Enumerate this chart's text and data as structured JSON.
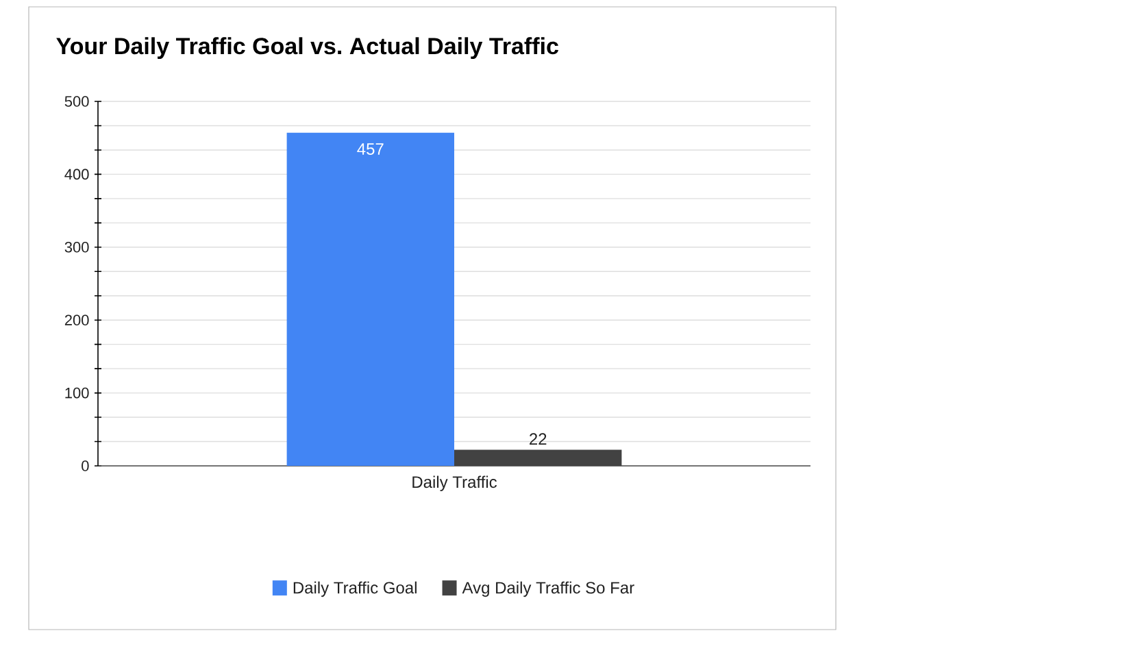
{
  "chart_data": {
    "type": "bar",
    "title": "Your Daily Traffic Goal vs. Actual Daily Traffic",
    "categories": [
      "Daily Traffic"
    ],
    "series": [
      {
        "name": "Daily Traffic Goal",
        "color": "#4285f4",
        "values": [
          457
        ]
      },
      {
        "name": "Avg Daily Traffic So Far",
        "color": "#424242",
        "values": [
          22
        ]
      }
    ],
    "ylim": [
      0,
      500
    ],
    "yticks": [
      0,
      {
        "value": 33.3,
        "label": null
      },
      {
        "value": 66.7,
        "label": null
      },
      100,
      {
        "value": 133.3,
        "label": null
      },
      {
        "value": 166.7,
        "label": null
      },
      200,
      {
        "value": 233.3,
        "label": null
      },
      {
        "value": 266.7,
        "label": null
      },
      300,
      {
        "value": 333.3,
        "label": null
      },
      {
        "value": 366.7,
        "label": null
      },
      400,
      {
        "value": 433.3,
        "label": null
      },
      {
        "value": 466.7,
        "label": null
      },
      500
    ],
    "grid": "y",
    "legend": "bottom",
    "data_labels": true
  }
}
